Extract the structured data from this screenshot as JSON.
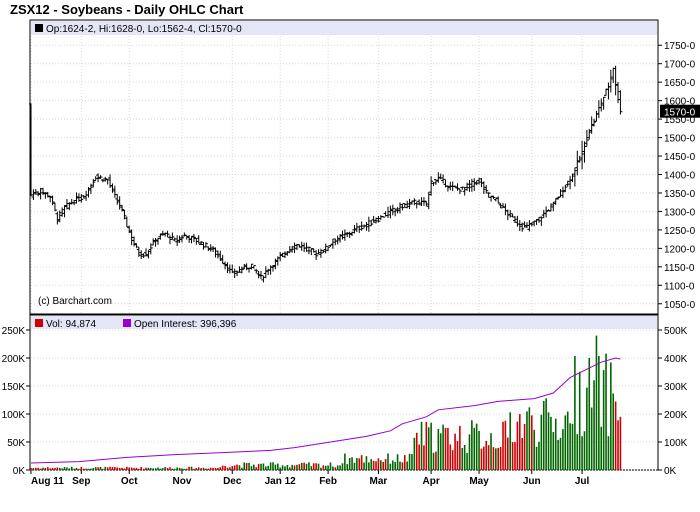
{
  "chart_data": [
    {
      "type": "ohlc",
      "title": "ZSX12 - Soybeans - Daily OHLC Chart",
      "legend": {
        "label": "Op:1624-2, Hi:1628-0, Lo:1562-4, Cl:1570-0"
      },
      "last_price_label": "1570-0",
      "watermark": "(c) Barchart.com",
      "ylim": [
        1025,
        1775
      ],
      "y_ticks": [
        1050,
        1100,
        1150,
        1200,
        1250,
        1300,
        1350,
        1400,
        1450,
        1500,
        1550,
        1600,
        1650,
        1700,
        1750
      ],
      "y_tick_labels": [
        "1050-0",
        "1100-0",
        "1150-0",
        "1200-0",
        "1250-0",
        "1300-0",
        "1350-0",
        "1400-0",
        "1450-0",
        "1500-0",
        "1550-0",
        "1600-0",
        "1650-0",
        "1700-0",
        "1750-0"
      ],
      "x_labels": [
        {
          "label": "Aug 11",
          "day": 0
        },
        {
          "label": "Sep",
          "day": 21
        },
        {
          "label": "Oct",
          "day": 41
        },
        {
          "label": "Nov",
          "day": 63
        },
        {
          "label": "Dec",
          "day": 84
        },
        {
          "label": "Jan 12",
          "day": 104
        },
        {
          "label": "Feb",
          "day": 124
        },
        {
          "label": "Mar",
          "day": 145
        },
        {
          "label": "Apr",
          "day": 167
        },
        {
          "label": "May",
          "day": 187
        },
        {
          "label": "Jun",
          "day": 209
        },
        {
          "label": "Jul",
          "day": 230
        }
      ],
      "x_range": [
        0,
        250
      ],
      "price_anchors": [
        [
          0,
          1345
        ],
        [
          4,
          1355
        ],
        [
          8,
          1340
        ],
        [
          11,
          1280
        ],
        [
          14,
          1310
        ],
        [
          18,
          1330
        ],
        [
          22,
          1340
        ],
        [
          27,
          1395
        ],
        [
          32,
          1385
        ],
        [
          35,
          1340
        ],
        [
          38,
          1300
        ],
        [
          42,
          1225
        ],
        [
          45,
          1185
        ],
        [
          48,
          1185
        ],
        [
          52,
          1225
        ],
        [
          56,
          1240
        ],
        [
          60,
          1220
        ],
        [
          64,
          1235
        ],
        [
          68,
          1225
        ],
        [
          72,
          1210
        ],
        [
          76,
          1195
        ],
        [
          80,
          1165
        ],
        [
          84,
          1130
        ],
        [
          88,
          1145
        ],
        [
          92,
          1155
        ],
        [
          96,
          1120
        ],
        [
          99,
          1145
        ],
        [
          103,
          1170
        ],
        [
          107,
          1195
        ],
        [
          111,
          1210
        ],
        [
          115,
          1200
        ],
        [
          119,
          1185
        ],
        [
          123,
          1200
        ],
        [
          127,
          1225
        ],
        [
          131,
          1235
        ],
        [
          135,
          1250
        ],
        [
          140,
          1265
        ],
        [
          145,
          1280
        ],
        [
          150,
          1300
        ],
        [
          155,
          1315
        ],
        [
          160,
          1325
        ],
        [
          165,
          1320
        ],
        [
          167,
          1380
        ],
        [
          170,
          1390
        ],
        [
          175,
          1365
        ],
        [
          180,
          1360
        ],
        [
          184,
          1375
        ],
        [
          187,
          1385
        ],
        [
          190,
          1350
        ],
        [
          194,
          1330
        ],
        [
          198,
          1300
        ],
        [
          202,
          1275
        ],
        [
          206,
          1255
        ],
        [
          209,
          1265
        ],
        [
          212,
          1280
        ],
        [
          215,
          1300
        ],
        [
          218,
          1320
        ],
        [
          222,
          1360
        ],
        [
          226,
          1400
        ],
        [
          230,
          1460
        ],
        [
          233,
          1520
        ],
        [
          235,
          1545
        ],
        [
          238,
          1595
        ],
        [
          241,
          1640
        ],
        [
          243,
          1690
        ],
        [
          245,
          1600
        ],
        [
          246,
          1590
        ]
      ],
      "volume": {
        "legend": "Vol: 94,874",
        "color": "#cc0000",
        "color_up": "#006600",
        "ylim": [
          0,
          250000
        ],
        "y_ticks": [
          0,
          50000,
          100000,
          150000,
          200000,
          250000
        ],
        "y_tick_labels": [
          "0K",
          "50K",
          "100K",
          "150K",
          "200K",
          "250K"
        ],
        "last_value": 94874
      },
      "open_interest": {
        "legend": "Open Interest: 396,396",
        "color": "#9900cc",
        "ylim": [
          0,
          500000
        ],
        "y_ticks": [
          0,
          100000,
          200000,
          300000,
          400000,
          500000
        ],
        "y_tick_labels": [
          "0K",
          "100K",
          "200K",
          "300K",
          "400K",
          "500K"
        ],
        "points": [
          [
            0,
            25000
          ],
          [
            20,
            30000
          ],
          [
            40,
            45000
          ],
          [
            60,
            55000
          ],
          [
            80,
            62000
          ],
          [
            100,
            70000
          ],
          [
            110,
            80000
          ],
          [
            125,
            100000
          ],
          [
            140,
            120000
          ],
          [
            150,
            140000
          ],
          [
            155,
            165000
          ],
          [
            165,
            190000
          ],
          [
            170,
            215000
          ],
          [
            185,
            230000
          ],
          [
            195,
            245000
          ],
          [
            210,
            255000
          ],
          [
            218,
            275000
          ],
          [
            225,
            330000
          ],
          [
            232,
            360000
          ],
          [
            238,
            385000
          ],
          [
            244,
            400000
          ],
          [
            246,
            396396
          ]
        ]
      }
    }
  ]
}
